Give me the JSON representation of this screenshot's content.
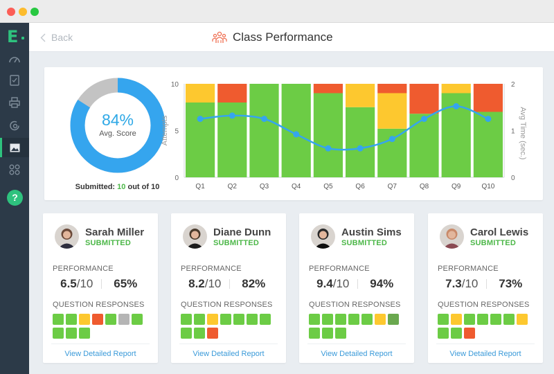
{
  "header": {
    "back_label": "Back",
    "title": "Class Performance",
    "title_icon": "people-group-icon"
  },
  "sidebar": {
    "logo": "E",
    "items": [
      {
        "icon": "dashboard-gauge-icon",
        "active": false
      },
      {
        "icon": "clipboard-check-icon",
        "active": false
      },
      {
        "icon": "printer-icon",
        "active": false
      },
      {
        "icon": "refresh-search-icon",
        "active": false
      },
      {
        "icon": "image-icon",
        "active": true
      },
      {
        "icon": "apps-grid-icon",
        "active": false
      }
    ],
    "help_label": "?"
  },
  "summary": {
    "avg_score": "84%",
    "avg_score_fraction": 0.84,
    "avg_label": "Avg. Score",
    "submitted_prefix": "Submitted:",
    "submitted_count": "10",
    "submitted_suffix": "out of 10"
  },
  "colors": {
    "correct": "#6ccc45",
    "partial": "#fdc82f",
    "incorrect": "#ef5b2f",
    "skipped": "#b5b5b5",
    "dark_green": "#6aa84f",
    "accent_blue": "#35a5ee",
    "donut_gray": "#c3c3c3",
    "sidebar_bg": "#2c3a48",
    "brand_green": "#2ec27e"
  },
  "chart_data": {
    "type": "bar",
    "stacked": true,
    "categories": [
      "Q1",
      "Q2",
      "Q3",
      "Q4",
      "Q5",
      "Q6",
      "Q7",
      "Q8",
      "Q9",
      "Q10"
    ],
    "series": [
      {
        "color": "#6ccc45",
        "values": [
          8,
          8,
          10,
          10,
          9,
          7.5,
          5.2,
          6.8,
          9,
          7
        ]
      },
      {
        "color": "#fdc82f",
        "values": [
          2,
          0,
          0,
          0,
          0,
          2.5,
          3.8,
          0,
          1,
          0
        ]
      },
      {
        "color": "#ef5b2f",
        "values": [
          0,
          2,
          0,
          0,
          1,
          0,
          1,
          3.2,
          0,
          3
        ]
      }
    ],
    "line": {
      "color": "#35a5ee",
      "values": [
        1.25,
        1.32,
        1.25,
        0.92,
        0.62,
        0.62,
        0.82,
        1.25,
        1.52,
        1.25
      ]
    },
    "ylabel": "Attempts",
    "y2label": "Avg Time (sec.)",
    "ylim": [
      0,
      10
    ],
    "y2lim": [
      0,
      2
    ],
    "yticks": [
      "0",
      "5",
      "10"
    ],
    "y2ticks": [
      "0",
      "1",
      "2"
    ],
    "grid": false
  },
  "students": [
    {
      "name": "Sarah Miller",
      "status": "SUBMITTED",
      "performance_label": "PERFORMANCE",
      "score": "6.5",
      "out_of": "/10",
      "percent": "65%",
      "responses_label": "QUESTION RESPONSES",
      "responses": [
        "#6ccc45",
        "#6ccc45",
        "#fdc82f",
        "#ef5b2f",
        "#6ccc45",
        "#b5b5b5",
        "#6ccc45",
        "#6ccc45",
        "#6ccc45",
        "#6ccc45"
      ],
      "report_link": "View Detailed Report",
      "avatar_color": "#6b4a3a",
      "avatar_shirt": "#2e2e3e"
    },
    {
      "name": "Diane Dunn",
      "status": "SUBMITTED",
      "performance_label": "PERFORMANCE",
      "score": "8.2",
      "out_of": "/10",
      "percent": "82%",
      "responses_label": "QUESTION RESPONSES",
      "responses": [
        "#6ccc45",
        "#6ccc45",
        "#fdc82f",
        "#6ccc45",
        "#6ccc45",
        "#6ccc45",
        "#6ccc45",
        "#6ccc45",
        "#6ccc45",
        "#ef5b2f"
      ],
      "report_link": "View Detailed Report",
      "avatar_color": "#4a3a2c",
      "avatar_shirt": "#1c1c1c"
    },
    {
      "name": "Austin Sims",
      "status": "SUBMITTED",
      "performance_label": "PERFORMANCE",
      "score": "9.4",
      "out_of": "/10",
      "percent": "94%",
      "responses_label": "QUESTION RESPONSES",
      "responses": [
        "#6ccc45",
        "#6ccc45",
        "#6ccc45",
        "#6ccc45",
        "#6ccc45",
        "#fdc82f",
        "#6aa84f",
        "#6ccc45",
        "#6ccc45",
        "#6ccc45"
      ],
      "report_link": "View Detailed Report",
      "avatar_color": "#2a2a2a",
      "avatar_shirt": "#0e0e0e"
    },
    {
      "name": "Carol Lewis",
      "status": "SUBMITTED",
      "performance_label": "PERFORMANCE",
      "score": "7.3",
      "out_of": "/10",
      "percent": "73%",
      "responses_label": "QUESTION RESPONSES",
      "responses": [
        "#6ccc45",
        "#fdc82f",
        "#6ccc45",
        "#6ccc45",
        "#6ccc45",
        "#6ccc45",
        "#fdc82f",
        "#6ccc45",
        "#6ccc45",
        "#ef5b2f"
      ],
      "report_link": "View Detailed Report",
      "avatar_color": "#c98a6a",
      "avatar_shirt": "#8a4a52"
    }
  ]
}
